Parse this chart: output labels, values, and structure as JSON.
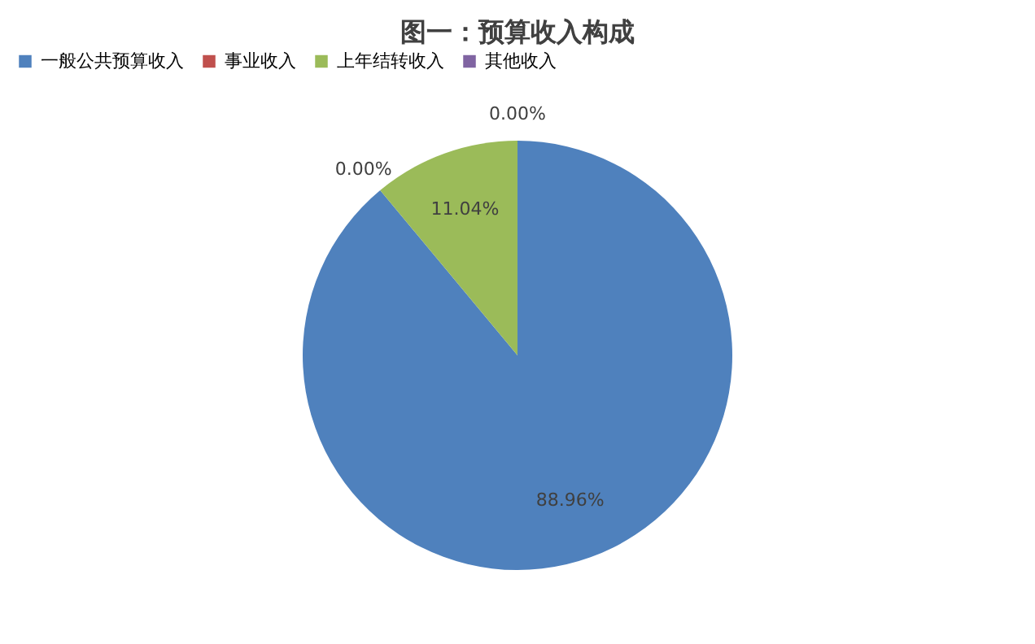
{
  "chart_data": {
    "type": "pie",
    "title": "图一：预算收入构成",
    "categories": [
      "一般公共预算收入",
      "事业收入",
      "上年结转收入",
      "其他收入"
    ],
    "values": [
      88.96,
      0.0,
      11.04,
      0.0
    ],
    "colors": [
      "#4f81bd",
      "#c0504d",
      "#9bbb59",
      "#8064a2"
    ],
    "value_labels": [
      "88.96%",
      "0.00%",
      "11.04%",
      "0.00%"
    ],
    "legend": "top"
  }
}
